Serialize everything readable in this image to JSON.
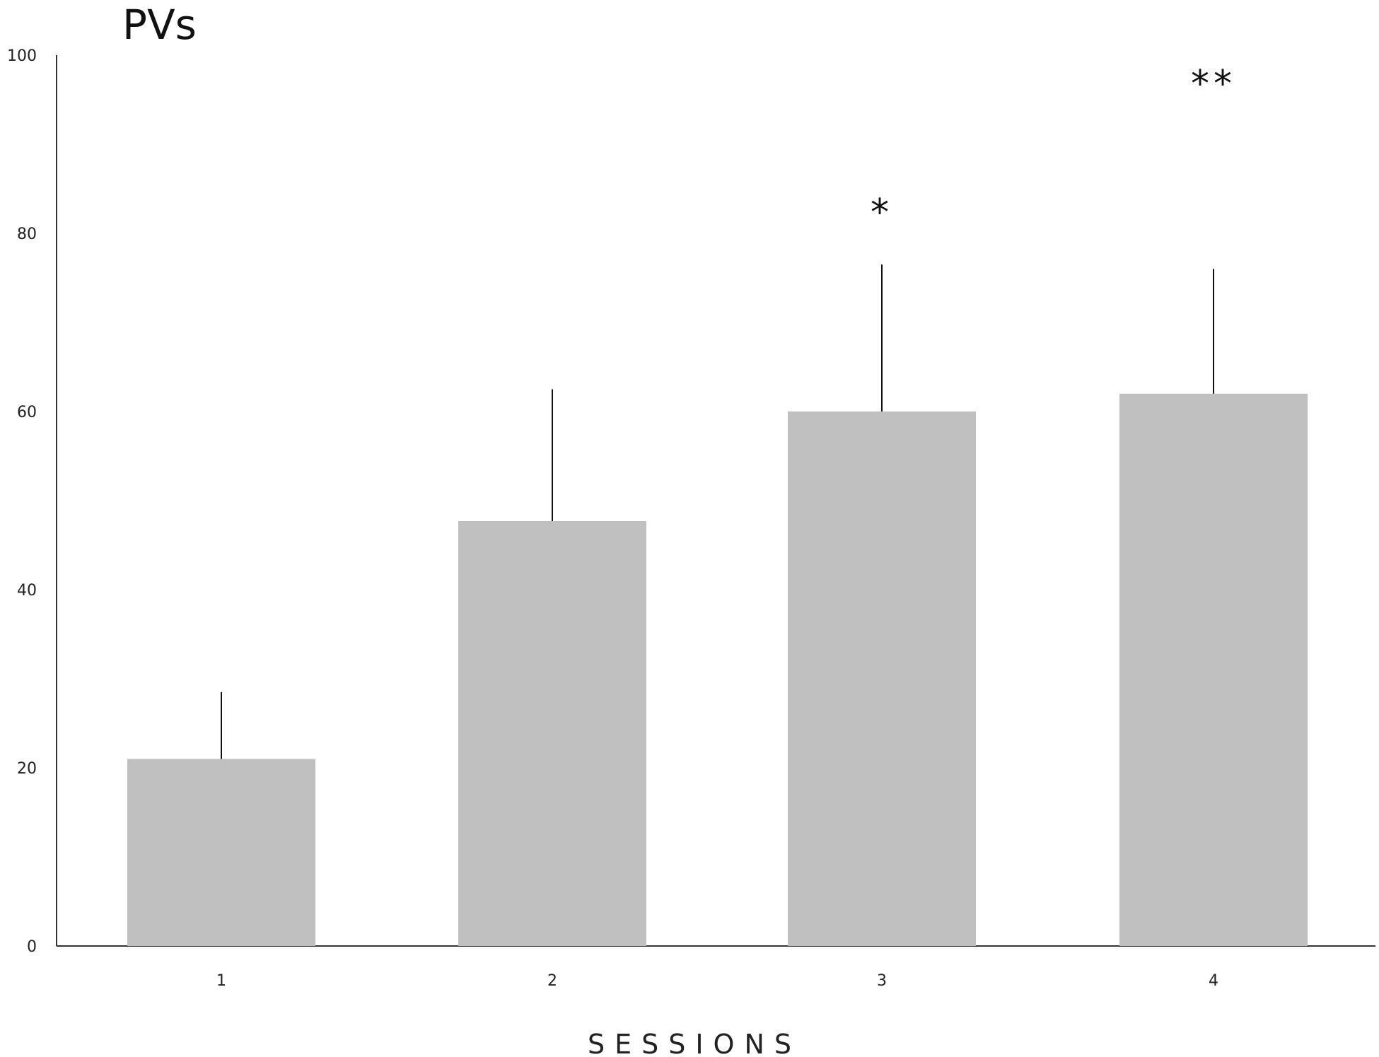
{
  "chart_data": {
    "type": "bar",
    "title": "PVs",
    "xlabel": "SESSIONS",
    "ylabel": "",
    "categories": [
      "1",
      "2",
      "3",
      "4"
    ],
    "values": [
      21,
      47.7,
      60,
      62
    ],
    "error_upper": [
      28.5,
      62.5,
      76.5,
      76
    ],
    "annotations": [
      "",
      "",
      "*",
      "**"
    ],
    "ylim": [
      0,
      100
    ],
    "yticks": [
      0,
      20,
      40,
      60,
      80,
      100
    ],
    "grid": false,
    "legend": "none",
    "bar_color": "#c0c0c0",
    "error_color": "#111111",
    "axis_color": "#333333"
  }
}
